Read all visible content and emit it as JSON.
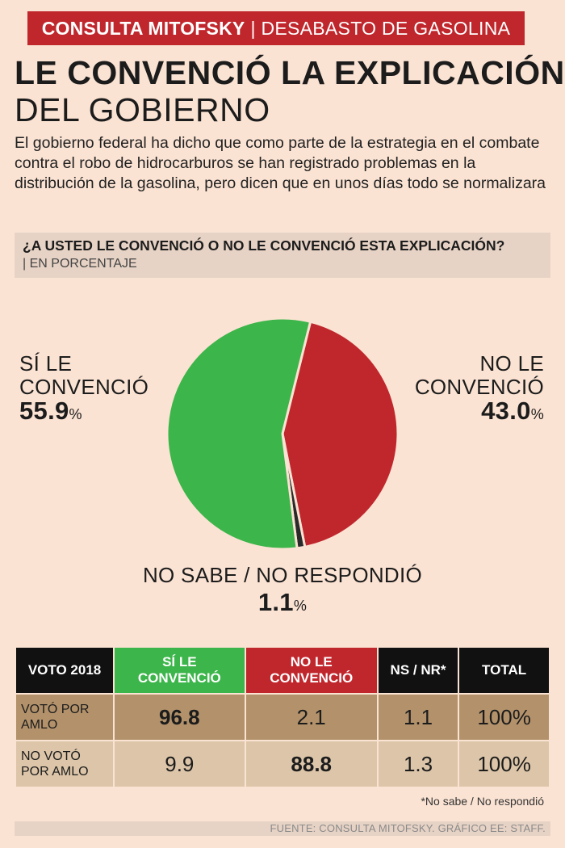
{
  "header": {
    "kicker": "CONSULTA MITOFSKY",
    "separator": "|",
    "topic": "DESABASTO DE GASOLINA"
  },
  "title": "LE CONVENCIÓ LA EXPLICACIÓN",
  "subtitle": "DEL GOBIERNO",
  "lede": "El gobierno federal ha dicho que como parte de la estrategia en el combate contra el robo de hidrocarburos se han registrado problemas en la distribución de la gasolina, pero dicen que en unos días todo se normalizara",
  "question": "¿A USTED LE CONVENCIÓ O NO LE CONVENCIÓ ESTA EXPLICACIÓN?",
  "unit_note": "| EN PORCENTAJE",
  "colors": {
    "si": "#3cb54a",
    "no": "#c0272d",
    "ns": "#2a2a2a",
    "accent": "#c0272d",
    "background": "#fbe3d3"
  },
  "chart_data": [
    {
      "type": "pie",
      "categories": [
        "SÍ LE CONVENCIÓ",
        "NO LE CONVENCIÓ",
        "NO SABE / NO RESPONDIÓ"
      ],
      "values": [
        55.9,
        43.0,
        1.1
      ],
      "labels": [
        {
          "line1": "SÍ LE",
          "line2": "CONVENCIÓ",
          "value": "55.9",
          "unit": "%"
        },
        {
          "line1": "NO LE",
          "line2": "CONVENCIÓ",
          "value": "43.0",
          "unit": "%"
        },
        {
          "line1": "NO SABE / NO RESPONDIÓ",
          "value": "1.1",
          "unit": "%"
        }
      ]
    },
    {
      "type": "table",
      "columns": [
        "VOTO 2018",
        "SÍ LE CONVENCIÓ",
        "NO LE CONVENCIÓ",
        "NS / NR*",
        "TOTAL"
      ],
      "header_lines": {
        "si": [
          "SÍ LE",
          "CONVENCIÓ"
        ],
        "no": [
          "NO LE",
          "CONVENCIÓ"
        ]
      },
      "rows": [
        {
          "label_lines": [
            "VOTÓ POR",
            "AMLO"
          ],
          "si": "96.8",
          "no": "2.1",
          "ns": "1.1",
          "total": "100%"
        },
        {
          "label_lines": [
            "NO VOTÓ",
            "POR AMLO"
          ],
          "si": "9.9",
          "no": "88.8",
          "ns": "1.3",
          "total": "100%"
        }
      ]
    }
  ],
  "footnote": "*No sabe / No respondió",
  "source": "FUENTE: CONSULTA MITOFSKY. GRÁFICO EE: STAFF."
}
